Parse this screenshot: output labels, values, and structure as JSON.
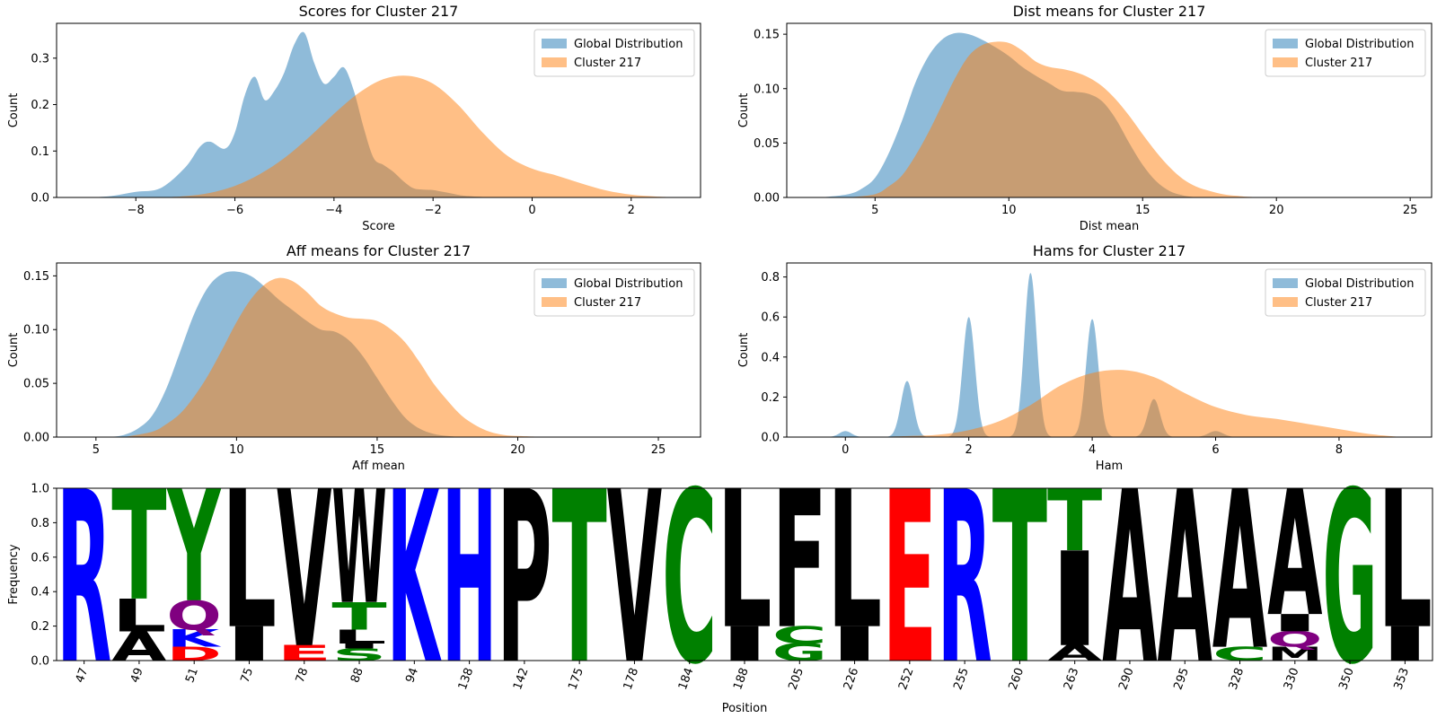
{
  "colors": {
    "global": "#1f77b4",
    "cluster": "#ff7f0e",
    "logo_blue": "#0000ff",
    "logo_green": "#008000",
    "logo_red": "#ff0000",
    "logo_black": "#000000",
    "logo_purple": "#800080"
  },
  "chart_data": [
    {
      "type": "area",
      "title": "Scores for Cluster 217",
      "xlabel": "Score",
      "ylabel": "Count",
      "xlim": [
        -9.6,
        3.4
      ],
      "ylim": [
        0,
        0.375
      ],
      "xticks": [
        -8,
        -6,
        -4,
        -2,
        0,
        2
      ],
      "yticks": [
        0.0,
        0.1,
        0.2,
        0.3
      ],
      "ytick_labels": [
        "0.0",
        "0.1",
        "0.2",
        "0.3"
      ],
      "legend": {
        "position": "top-right",
        "entries": [
          "Global Distribution",
          "Cluster 217"
        ]
      },
      "series": [
        {
          "name": "Global Distribution",
          "x": [
            -9.0,
            -8.5,
            -8.0,
            -7.5,
            -7.0,
            -6.7,
            -6.5,
            -6.2,
            -6.0,
            -5.8,
            -5.6,
            -5.4,
            -5.2,
            -5.0,
            -4.8,
            -4.6,
            -4.4,
            -4.2,
            -4.0,
            -3.8,
            -3.6,
            -3.4,
            -3.2,
            -3.0,
            -2.8,
            -2.6,
            -2.4,
            -2.2,
            -2.0,
            -1.8,
            -1.6,
            -1.4,
            -1.0,
            -0.5,
            0.0
          ],
          "y": [
            0.0,
            0.003,
            0.012,
            0.02,
            0.065,
            0.11,
            0.12,
            0.105,
            0.14,
            0.22,
            0.26,
            0.21,
            0.23,
            0.27,
            0.33,
            0.355,
            0.29,
            0.245,
            0.26,
            0.28,
            0.23,
            0.15,
            0.085,
            0.07,
            0.055,
            0.035,
            0.02,
            0.017,
            0.016,
            0.012,
            0.008,
            0.004,
            0.001,
            0.0,
            0.0
          ]
        },
        {
          "name": "Cluster 217",
          "x": [
            -7.5,
            -7.0,
            -6.5,
            -6.0,
            -5.5,
            -5.0,
            -4.5,
            -4.0,
            -3.5,
            -3.0,
            -2.5,
            -2.0,
            -1.5,
            -1.0,
            -0.5,
            0.0,
            0.5,
            1.0,
            1.5,
            2.0,
            2.5,
            3.0
          ],
          "y": [
            0.0,
            0.003,
            0.01,
            0.025,
            0.05,
            0.085,
            0.13,
            0.18,
            0.225,
            0.255,
            0.262,
            0.245,
            0.2,
            0.14,
            0.09,
            0.062,
            0.047,
            0.03,
            0.015,
            0.006,
            0.002,
            0.0
          ]
        }
      ]
    },
    {
      "type": "area",
      "title": "Dist means for Cluster 217",
      "xlabel": "Dist mean",
      "ylabel": "Count",
      "xlim": [
        1.7,
        25.8
      ],
      "ylim": [
        0,
        0.16
      ],
      "xticks": [
        5,
        10,
        15,
        20,
        25
      ],
      "yticks": [
        0.0,
        0.05,
        0.1,
        0.15
      ],
      "ytick_labels": [
        "0.00",
        "0.05",
        "0.10",
        "0.15"
      ],
      "legend": {
        "position": "top-right",
        "entries": [
          "Global Distribution",
          "Cluster 217"
        ]
      },
      "series": [
        {
          "name": "Global Distribution",
          "x": [
            3.0,
            4.0,
            4.5,
            5.0,
            5.5,
            6.0,
            6.5,
            7.0,
            7.5,
            8.0,
            8.5,
            9.0,
            9.5,
            10.0,
            10.5,
            11.0,
            11.5,
            12.0,
            12.5,
            13.0,
            13.5,
            14.0,
            14.5,
            15.0,
            15.5,
            16.0,
            16.5,
            17.0
          ],
          "y": [
            0.0,
            0.003,
            0.008,
            0.018,
            0.04,
            0.07,
            0.105,
            0.13,
            0.145,
            0.151,
            0.15,
            0.145,
            0.138,
            0.13,
            0.12,
            0.112,
            0.105,
            0.098,
            0.097,
            0.095,
            0.088,
            0.072,
            0.05,
            0.03,
            0.015,
            0.006,
            0.002,
            0.0
          ]
        },
        {
          "name": "Cluster 217",
          "x": [
            4.0,
            5.0,
            5.5,
            6.0,
            6.5,
            7.0,
            7.5,
            8.0,
            8.5,
            9.0,
            9.5,
            10.0,
            10.5,
            11.0,
            11.5,
            12.0,
            12.5,
            13.0,
            13.5,
            14.0,
            14.5,
            15.0,
            15.5,
            16.0,
            16.5,
            17.0,
            17.5,
            18.0,
            18.5,
            19.0,
            20.0
          ],
          "y": [
            0.0,
            0.003,
            0.01,
            0.02,
            0.038,
            0.06,
            0.085,
            0.11,
            0.13,
            0.14,
            0.143,
            0.142,
            0.135,
            0.125,
            0.12,
            0.118,
            0.115,
            0.11,
            0.102,
            0.09,
            0.075,
            0.058,
            0.042,
            0.028,
            0.017,
            0.01,
            0.006,
            0.003,
            0.0015,
            0.0005,
            0.0
          ]
        }
      ]
    },
    {
      "type": "area",
      "title": "Aff means for Cluster 217",
      "xlabel": "Aff mean",
      "ylabel": "Count",
      "xlim": [
        3.6,
        26.5
      ],
      "ylim": [
        0,
        0.162
      ],
      "xticks": [
        5,
        10,
        15,
        20,
        25
      ],
      "yticks": [
        0.0,
        0.05,
        0.1,
        0.15
      ],
      "ytick_labels": [
        "0.00",
        "0.05",
        "0.10",
        "0.15"
      ],
      "legend": {
        "position": "top-right",
        "entries": [
          "Global Distribution",
          "Cluster 217"
        ]
      },
      "series": [
        {
          "name": "Global Distribution",
          "x": [
            5.5,
            6.0,
            6.5,
            7.0,
            7.5,
            8.0,
            8.5,
            9.0,
            9.5,
            10.0,
            10.5,
            11.0,
            11.5,
            12.0,
            12.5,
            13.0,
            13.5,
            14.0,
            14.5,
            15.0,
            15.5,
            16.0,
            16.5,
            17.0,
            17.5,
            18.0
          ],
          "y": [
            0.0,
            0.002,
            0.008,
            0.02,
            0.045,
            0.08,
            0.115,
            0.14,
            0.152,
            0.154,
            0.15,
            0.14,
            0.128,
            0.118,
            0.108,
            0.1,
            0.098,
            0.09,
            0.075,
            0.055,
            0.035,
            0.018,
            0.008,
            0.003,
            0.001,
            0.0
          ]
        },
        {
          "name": "Cluster 217",
          "x": [
            6.0,
            7.0,
            7.5,
            8.0,
            8.5,
            9.0,
            9.5,
            10.0,
            10.5,
            11.0,
            11.5,
            12.0,
            12.5,
            13.0,
            13.5,
            14.0,
            14.5,
            15.0,
            15.5,
            16.0,
            16.5,
            17.0,
            17.5,
            18.0,
            18.5,
            19.0,
            19.5,
            20.0,
            21.0
          ],
          "y": [
            0.0,
            0.005,
            0.012,
            0.022,
            0.038,
            0.058,
            0.082,
            0.107,
            0.128,
            0.142,
            0.148,
            0.145,
            0.135,
            0.122,
            0.115,
            0.111,
            0.11,
            0.108,
            0.1,
            0.088,
            0.07,
            0.05,
            0.034,
            0.02,
            0.011,
            0.005,
            0.002,
            0.001,
            0.0
          ]
        }
      ]
    },
    {
      "type": "area",
      "title": "Hams for Cluster 217",
      "xlabel": "Ham",
      "ylabel": "Count",
      "xlim": [
        -0.95,
        9.5
      ],
      "ylim": [
        0,
        0.87
      ],
      "xticks": [
        0,
        2,
        4,
        6,
        8
      ],
      "yticks": [
        0.0,
        0.2,
        0.4,
        0.6,
        0.8
      ],
      "ytick_labels": [
        "0.0",
        "0.2",
        "0.4",
        "0.6",
        "0.8"
      ],
      "legend": {
        "position": "top-right",
        "entries": [
          "Global Distribution",
          "Cluster 217"
        ]
      },
      "series": [
        {
          "name": "Global Distribution",
          "peaks": [
            {
              "center": 0,
              "height": 0.03,
              "width": 0.1
            },
            {
              "center": 1,
              "height": 0.28,
              "width": 0.1
            },
            {
              "center": 2,
              "height": 0.6,
              "width": 0.1
            },
            {
              "center": 3,
              "height": 0.82,
              "width": 0.1
            },
            {
              "center": 4,
              "height": 0.59,
              "width": 0.1
            },
            {
              "center": 5,
              "height": 0.19,
              "width": 0.1
            },
            {
              "center": 6,
              "height": 0.03,
              "width": 0.12
            }
          ]
        },
        {
          "name": "Cluster 217",
          "x": [
            0.5,
            1.0,
            1.5,
            2.0,
            2.5,
            3.0,
            3.5,
            4.0,
            4.5,
            5.0,
            5.5,
            6.0,
            6.5,
            7.0,
            7.5,
            8.0,
            8.5,
            9.0
          ],
          "y": [
            0.0,
            0.005,
            0.012,
            0.035,
            0.08,
            0.16,
            0.26,
            0.32,
            0.335,
            0.3,
            0.22,
            0.15,
            0.11,
            0.09,
            0.065,
            0.04,
            0.015,
            0.0
          ]
        }
      ]
    },
    {
      "type": "sequence-logo",
      "xlabel": "Position",
      "ylabel": "Frequency",
      "ylim": [
        0,
        1.0
      ],
      "yticks": [
        0.0,
        0.2,
        0.4,
        0.6,
        0.8,
        1.0
      ],
      "ytick_labels": [
        "0.0",
        "0.2",
        "0.4",
        "0.6",
        "0.8",
        "1.0"
      ],
      "positions": [
        "47",
        "49",
        "51",
        "75",
        "78",
        "88",
        "94",
        "138",
        "142",
        "175",
        "178",
        "184",
        "188",
        "205",
        "226",
        "252",
        "255",
        "260",
        "263",
        "290",
        "295",
        "328",
        "330",
        "350",
        "353"
      ],
      "columns": [
        [
          {
            "letter": "R",
            "freq": 1.0,
            "color": "blue"
          }
        ],
        [
          {
            "letter": "A",
            "freq": 0.17,
            "color": "black"
          },
          {
            "letter": "L",
            "freq": 0.19,
            "color": "black"
          },
          {
            "letter": "T",
            "freq": 0.64,
            "color": "green"
          }
        ],
        [
          {
            "letter": "D",
            "freq": 0.08,
            "color": "red"
          },
          {
            "letter": "K",
            "freq": 0.1,
            "color": "blue"
          },
          {
            "letter": "Q",
            "freq": 0.17,
            "color": "purple"
          },
          {
            "letter": "Y",
            "freq": 0.65,
            "color": "green"
          }
        ],
        [
          {
            "letter": "I",
            "freq": 0.2,
            "color": "black"
          },
          {
            "letter": "L",
            "freq": 0.8,
            "color": "black"
          }
        ],
        [
          {
            "letter": "E",
            "freq": 0.09,
            "color": "red"
          },
          {
            "letter": "V",
            "freq": 0.91,
            "color": "black"
          }
        ],
        [
          {
            "letter": "S",
            "freq": 0.07,
            "color": "green"
          },
          {
            "letter": "I",
            "freq": 0.03,
            "color": "black"
          },
          {
            "letter": "L",
            "freq": 0.08,
            "color": "black"
          },
          {
            "letter": "T",
            "freq": 0.16,
            "color": "green"
          },
          {
            "letter": "W",
            "freq": 0.66,
            "color": "black"
          }
        ],
        [
          {
            "letter": "K",
            "freq": 1.0,
            "color": "blue"
          }
        ],
        [
          {
            "letter": "H",
            "freq": 1.0,
            "color": "blue"
          }
        ],
        [
          {
            "letter": "P",
            "freq": 1.0,
            "color": "black"
          }
        ],
        [
          {
            "letter": "T",
            "freq": 1.0,
            "color": "green"
          }
        ],
        [
          {
            "letter": "V",
            "freq": 1.0,
            "color": "black"
          }
        ],
        [
          {
            "letter": "C",
            "freq": 1.0,
            "color": "green"
          }
        ],
        [
          {
            "letter": "I",
            "freq": 0.2,
            "color": "black"
          },
          {
            "letter": "L",
            "freq": 0.8,
            "color": "black"
          }
        ],
        [
          {
            "letter": "G",
            "freq": 0.1,
            "color": "green"
          },
          {
            "letter": "C",
            "freq": 0.1,
            "color": "green"
          },
          {
            "letter": "F",
            "freq": 0.8,
            "color": "black"
          }
        ],
        [
          {
            "letter": "I",
            "freq": 0.2,
            "color": "black"
          },
          {
            "letter": "L",
            "freq": 0.8,
            "color": "black"
          }
        ],
        [
          {
            "letter": "E",
            "freq": 1.0,
            "color": "red"
          }
        ],
        [
          {
            "letter": "R",
            "freq": 1.0,
            "color": "blue"
          }
        ],
        [
          {
            "letter": "T",
            "freq": 1.0,
            "color": "green"
          }
        ],
        [
          {
            "letter": "A",
            "freq": 0.09,
            "color": "black"
          },
          {
            "letter": "I",
            "freq": 0.55,
            "color": "black"
          },
          {
            "letter": "T",
            "freq": 0.36,
            "color": "green"
          }
        ],
        [
          {
            "letter": "A",
            "freq": 1.0,
            "color": "black"
          }
        ],
        [
          {
            "letter": "A",
            "freq": 1.0,
            "color": "black"
          }
        ],
        [
          {
            "letter": "C",
            "freq": 0.08,
            "color": "green"
          },
          {
            "letter": "A",
            "freq": 0.92,
            "color": "black"
          }
        ],
        [
          {
            "letter": "M",
            "freq": 0.08,
            "color": "black"
          },
          {
            "letter": "Q",
            "freq": 0.09,
            "color": "purple"
          },
          {
            "letter": "I",
            "freq": 0.1,
            "color": "black"
          },
          {
            "letter": "A",
            "freq": 0.73,
            "color": "black"
          }
        ],
        [
          {
            "letter": "G",
            "freq": 1.0,
            "color": "green"
          }
        ],
        [
          {
            "letter": "I",
            "freq": 0.2,
            "color": "black"
          },
          {
            "letter": "L",
            "freq": 0.8,
            "color": "black"
          }
        ]
      ]
    }
  ]
}
